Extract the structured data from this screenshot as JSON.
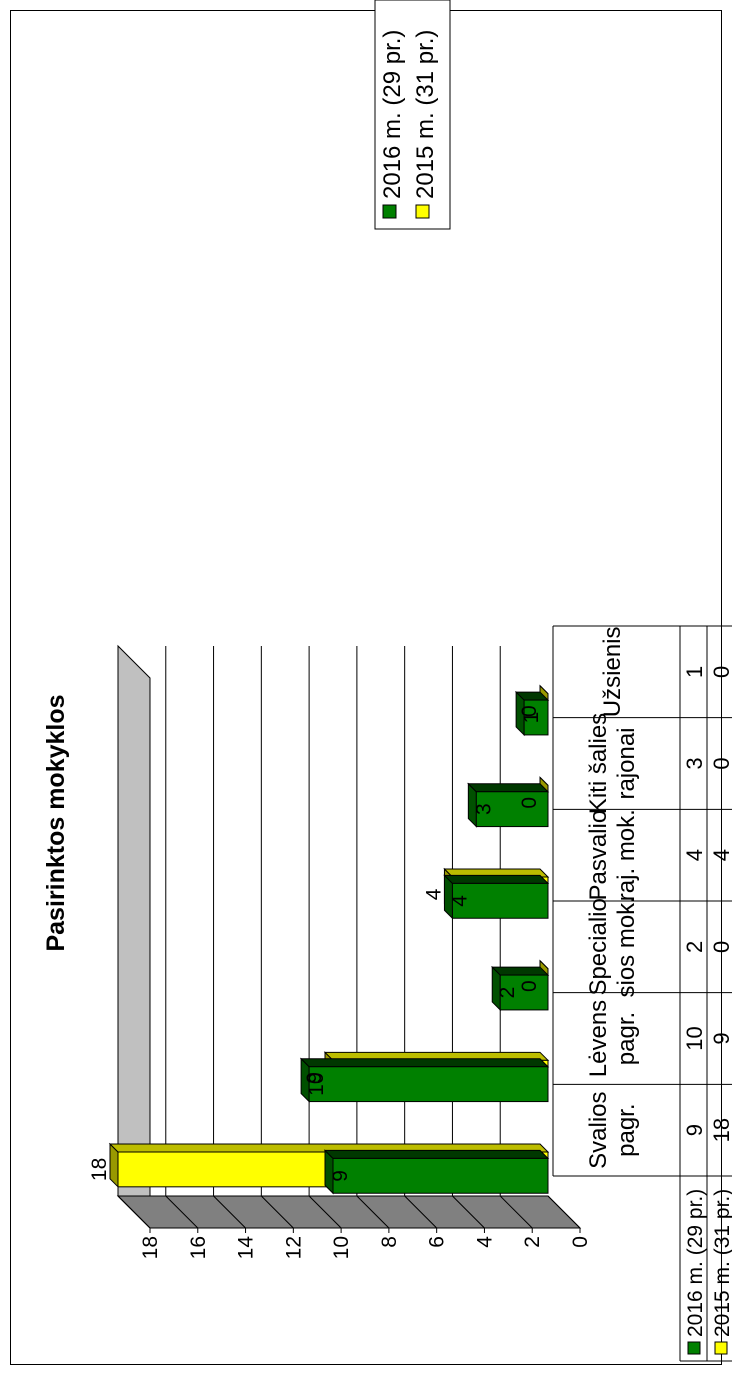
{
  "chart_data": {
    "type": "bar",
    "title": "Pasirinktos mokyklos",
    "categories": [
      [
        "Svalios",
        "pagr."
      ],
      [
        "Lėvens",
        "pagr."
      ],
      [
        "Specialio",
        "sios mok."
      ],
      [
        "Pasvalio",
        "raj. mok."
      ],
      [
        "Kiti šalies",
        "rajonai"
      ],
      [
        "Užsienis"
      ]
    ],
    "series": [
      {
        "name": "2016 m. (29 pr.)",
        "values": [
          9,
          10,
          2,
          4,
          3,
          1
        ],
        "color": "#008000",
        "top_color": "#005000",
        "side_color": "#003800",
        "swatch": "#008000"
      },
      {
        "name": "2015 m. (31 pr.)",
        "values": [
          18,
          9,
          0,
          4,
          0,
          0
        ],
        "color": "#ffff00",
        "top_color": "#999900",
        "side_color": "#bdbd00",
        "swatch": "#ffff00"
      }
    ],
    "ylim": [
      0,
      18
    ],
    "yticks": [
      0,
      2,
      4,
      6,
      8,
      10,
      12,
      14,
      16,
      18
    ],
    "grid": true,
    "legend_position": "right",
    "data_table": true,
    "wall_color": "#c0c0c0",
    "floor_color": "#808080"
  }
}
